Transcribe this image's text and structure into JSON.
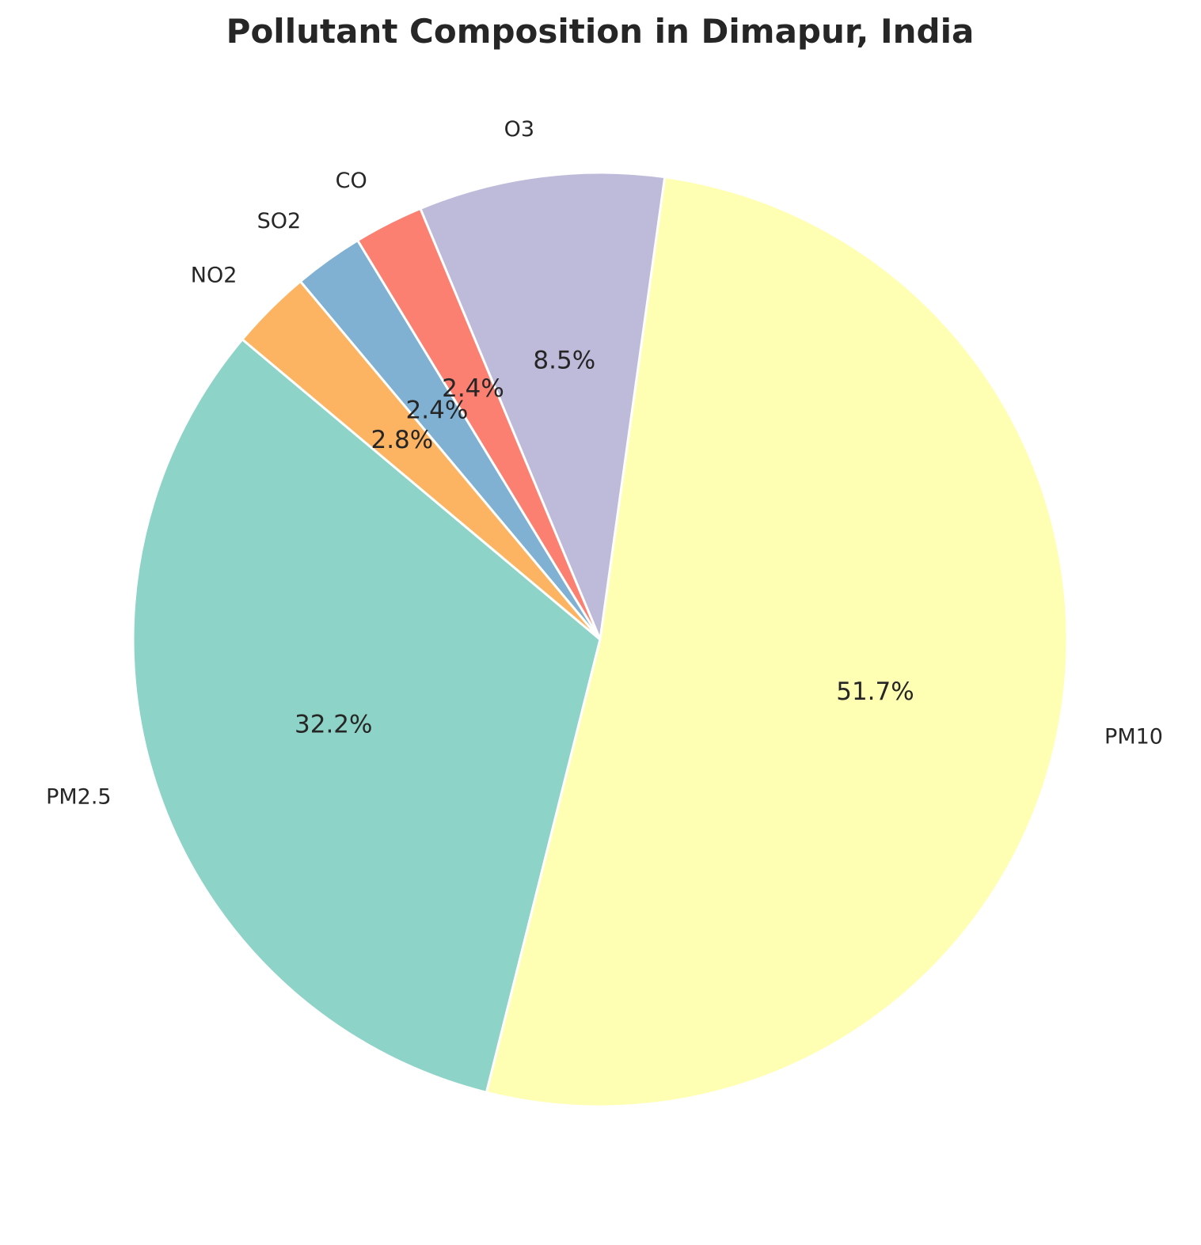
{
  "chart_data": {
    "type": "pie",
    "title": "Pollutant Composition in Dimapur, India",
    "categories": [
      "PM2.5",
      "PM10",
      "O3",
      "CO",
      "SO2",
      "NO2"
    ],
    "values": [
      32.2,
      51.7,
      8.5,
      2.4,
      2.4,
      2.8
    ],
    "percent_labels": [
      "32.2%",
      "51.7%",
      "8.5%",
      "2.4%",
      "2.4%",
      "2.8%"
    ],
    "colors": [
      "#8dd3c7",
      "#ffffb3",
      "#bebada",
      "#fb8072",
      "#80b1d3",
      "#fdb462"
    ],
    "start_angle_deg": 140,
    "direction": "counterclockwise"
  }
}
